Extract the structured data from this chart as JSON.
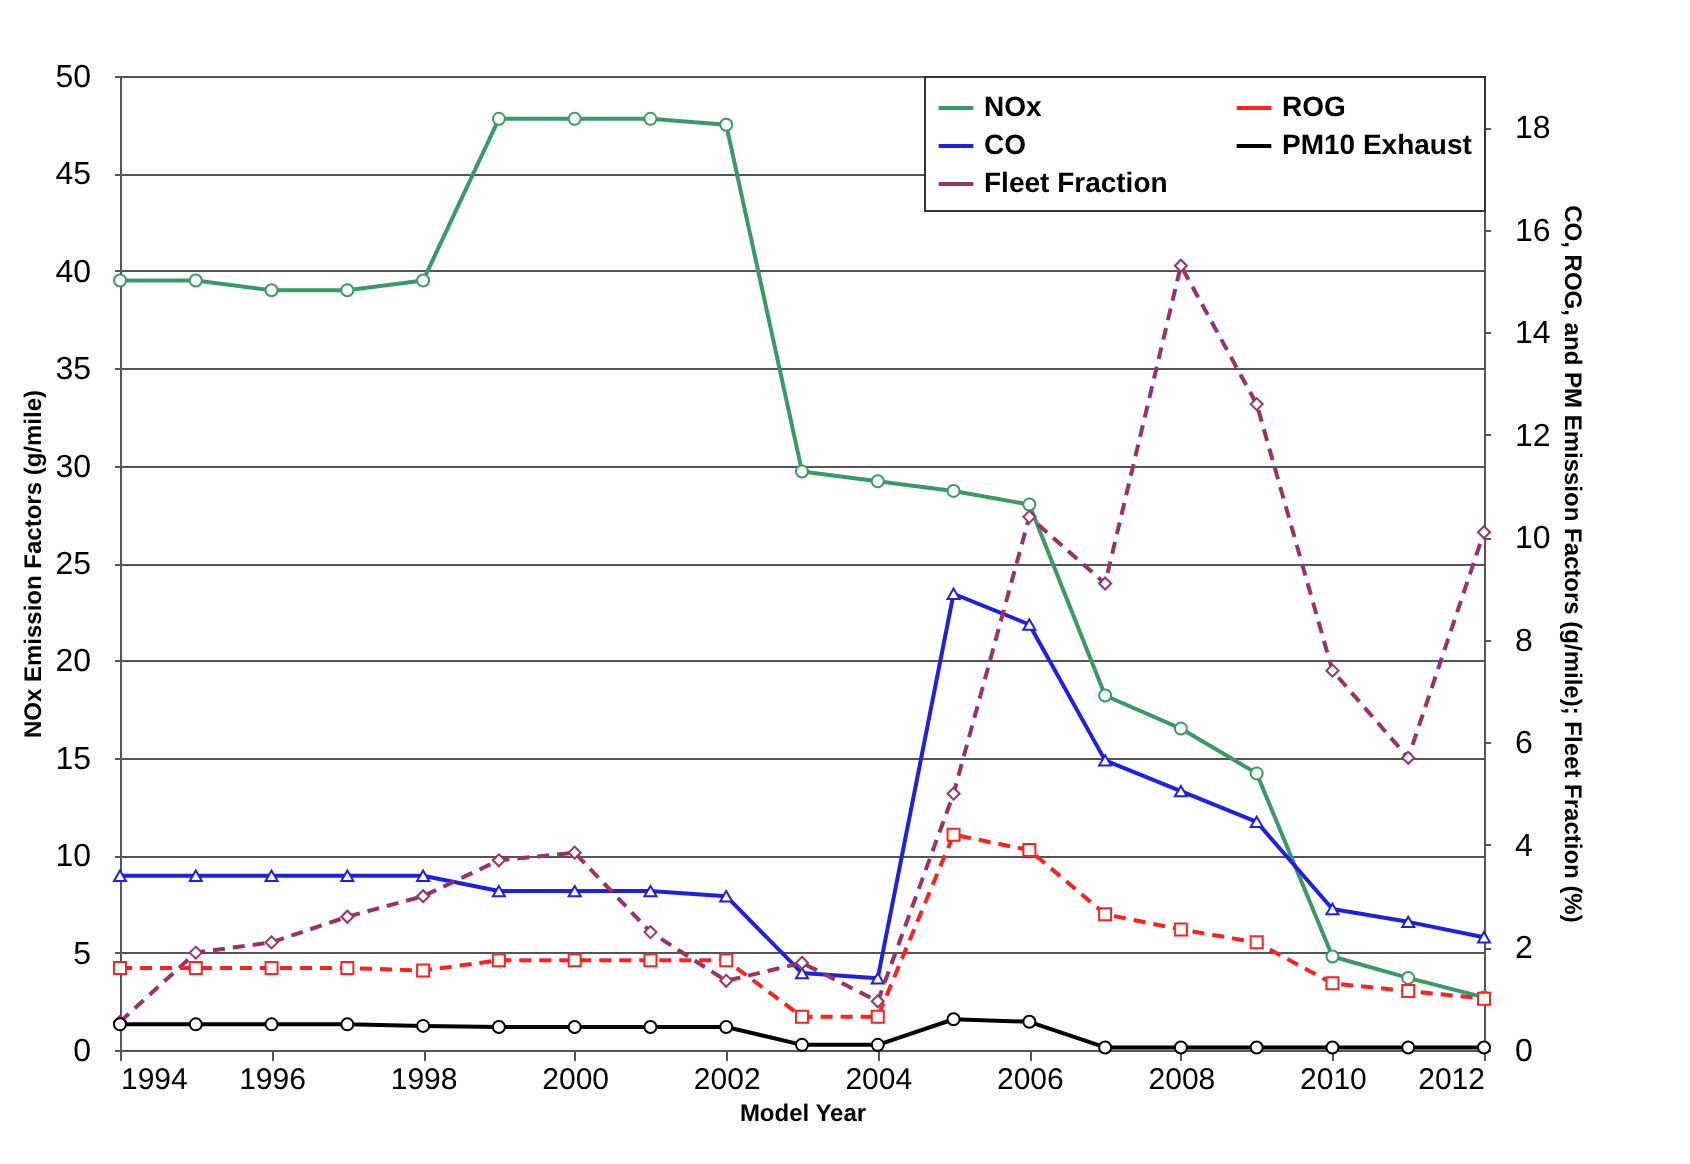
{
  "chart_data": {
    "type": "line",
    "xlabel": "Model Year",
    "ylabel": "NOx Emission Factors (g/mile)",
    "y2label": "CO, ROG, and PM Emission Factors (g/mile); Fleet Fraction (%)",
    "x": [
      1994,
      1995,
      1996,
      1997,
      1998,
      1999,
      2000,
      2001,
      2002,
      2003,
      2004,
      2005,
      2006,
      2007,
      2008,
      2009,
      2010,
      2011,
      2012
    ],
    "xlim": [
      1994,
      2012
    ],
    "xticks": [
      1994,
      1996,
      1998,
      2000,
      2002,
      2004,
      2006,
      2008,
      2010,
      2012
    ],
    "ylim": [
      0,
      50
    ],
    "yticks": [
      0,
      5,
      10,
      15,
      20,
      25,
      30,
      35,
      40,
      45,
      50
    ],
    "y2lim": [
      0,
      19
    ],
    "y2ticks": [
      0,
      2,
      4,
      6,
      8,
      10,
      12,
      14,
      16,
      18
    ],
    "grid": "y",
    "legend": "top right",
    "series": [
      {
        "name": "NOx",
        "color": "#3b9968",
        "marker": "circle",
        "line_style": "solid",
        "values": [
          39.5,
          39.5,
          39,
          39,
          39.5,
          47.8,
          47.8,
          47.8,
          47.5,
          29.7,
          29.2,
          28.7,
          28,
          18.2,
          16.5,
          14.2,
          4.8,
          3.7,
          2.7
        ]
      },
      {
        "name": "CO",
        "color": "#2020e0",
        "marker": "triangle",
        "line_style": "solid",
        "axis": "y2",
        "values": [
          3.4,
          3.4,
          3.4,
          3.4,
          3.4,
          3.1,
          3.1,
          3.1,
          3.0,
          1.5,
          1.4,
          8.9,
          8.3,
          5.65,
          5.05,
          4.45,
          2.75,
          2.5,
          2.2
        ]
      },
      {
        "name": "Fleet Fraction",
        "color": "#993366",
        "marker": "diamond",
        "line_style": "dashed",
        "axis": "y2",
        "values": [
          0.55,
          1.9,
          2.1,
          2.6,
          3.0,
          3.7,
          3.85,
          2.3,
          1.35,
          1.7,
          0.95,
          5.0,
          10.4,
          9.1,
          15.3,
          12.6,
          7.4,
          5.7,
          10.1
        ]
      },
      {
        "name": "ROG",
        "color": "#ff2020",
        "marker": "square",
        "line_style": "dashed",
        "axis": "y2",
        "values": [
          1.6,
          1.6,
          1.6,
          1.6,
          1.55,
          1.75,
          1.75,
          1.75,
          1.75,
          0.65,
          0.65,
          4.2,
          3.9,
          2.65,
          2.35,
          2.1,
          1.3,
          1.15,
          1.0
        ]
      },
      {
        "name": "PM10 Exhaust",
        "color": "#000000",
        "marker": "circle",
        "line_style": "solid",
        "axis": "y2",
        "values": [
          0.5,
          0.5,
          0.5,
          0.5,
          0.47,
          0.45,
          0.45,
          0.45,
          0.45,
          0.1,
          0.1,
          0.6,
          0.55,
          0.05,
          0.05,
          0.05,
          0.05,
          0.05,
          0.05
        ]
      }
    ]
  }
}
